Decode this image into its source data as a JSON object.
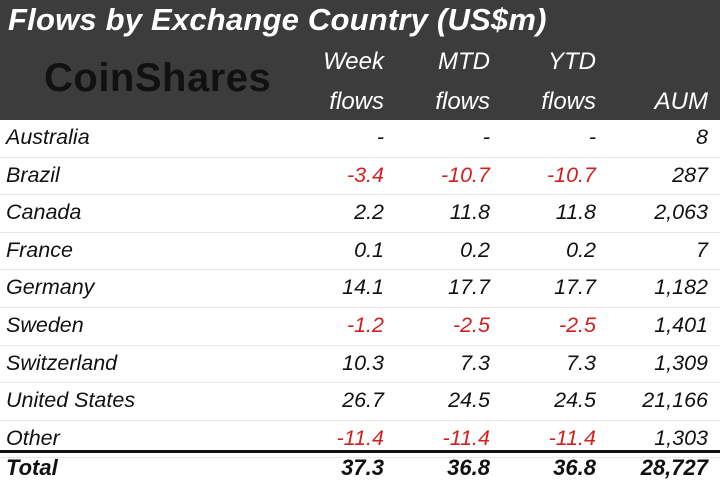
{
  "title": "Flows by Exchange Country (US$m)",
  "logo_text": "CoinShares",
  "colors": {
    "header_bg": "#3c3c3c",
    "negative": "#d21f1f",
    "text": "#111111"
  },
  "chart_data": {
    "type": "table",
    "columns": [
      {
        "line1": "Week",
        "line2": "flows"
      },
      {
        "line1": "MTD",
        "line2": "flows"
      },
      {
        "line1": "YTD",
        "line2": "flows"
      },
      {
        "line1": "",
        "line2": "AUM"
      }
    ],
    "rows": [
      {
        "country": "Australia",
        "values": [
          "-",
          "-",
          "-",
          "8"
        ]
      },
      {
        "country": "Brazil",
        "values": [
          "-3.4",
          "-10.7",
          "-10.7",
          "287"
        ]
      },
      {
        "country": "Canada",
        "values": [
          "2.2",
          "11.8",
          "11.8",
          "2,063"
        ]
      },
      {
        "country": "France",
        "values": [
          "0.1",
          "0.2",
          "0.2",
          "7"
        ]
      },
      {
        "country": "Germany",
        "values": [
          "14.1",
          "17.7",
          "17.7",
          "1,182"
        ]
      },
      {
        "country": "Sweden",
        "values": [
          "-1.2",
          "-2.5",
          "-2.5",
          "1,401"
        ]
      },
      {
        "country": "Switzerland",
        "values": [
          "10.3",
          "7.3",
          "7.3",
          "1,309"
        ]
      },
      {
        "country": "United States",
        "values": [
          "26.7",
          "24.5",
          "24.5",
          "21,166"
        ]
      },
      {
        "country": "Other",
        "values": [
          "-11.4",
          "-11.4",
          "-11.4",
          "1,303"
        ]
      }
    ],
    "total": {
      "label": "Total",
      "values": [
        "37.3",
        "36.8",
        "36.8",
        "28,727"
      ]
    }
  }
}
